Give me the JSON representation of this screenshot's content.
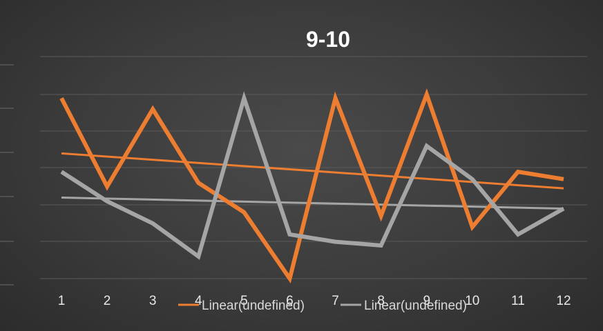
{
  "chart_data": {
    "type": "line",
    "title": "9-10",
    "xlabel": "",
    "ylabel": "",
    "categories": [
      "1",
      "2",
      "3",
      "4",
      "5",
      "6",
      "7",
      "8",
      "9",
      "10",
      "11",
      "12"
    ],
    "ylim": [
      0,
      5
    ],
    "grid": true,
    "series": [
      {
        "name": "",
        "color": "#ED7D31",
        "values": [
          4.9,
          2.5,
          4.6,
          2.6,
          1.8,
          0.0,
          4.9,
          1.7,
          5.0,
          1.4,
          2.9,
          2.7
        ]
      },
      {
        "name": "",
        "color": "#A5A5A5",
        "values": [
          2.9,
          2.1,
          1.5,
          0.6,
          4.9,
          1.2,
          1.0,
          0.9,
          3.6,
          2.7,
          1.2,
          1.9
        ]
      }
    ],
    "trendlines": [
      {
        "label": "Linear(undefined)",
        "color": "#ED7D31",
        "start": 3.4,
        "end": 2.45
      },
      {
        "label": "Linear(undefined)",
        "color": "#A5A5A5",
        "start": 2.2,
        "end": 1.9
      }
    ],
    "legend_position": "bottom"
  }
}
